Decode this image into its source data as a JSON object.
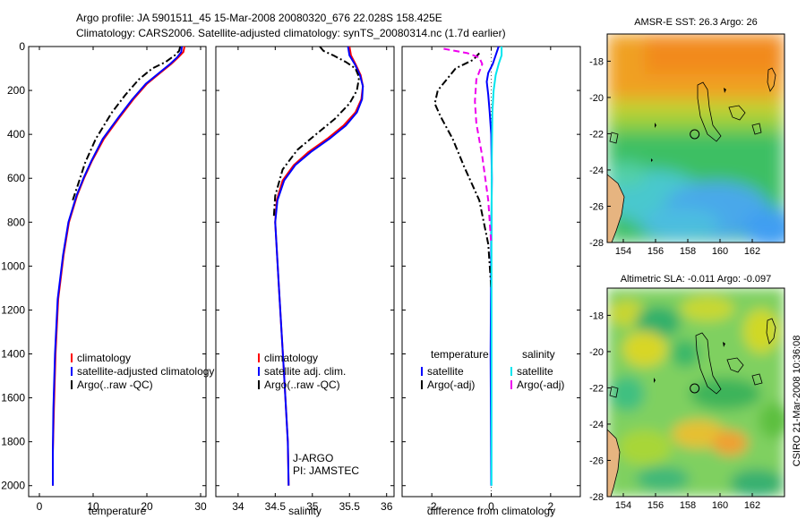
{
  "title": {
    "line1": "Argo profile: JA 5901511_45 15-Mar-2008 20080320_676 22.028S 158.425E",
    "line2": "Climatology: CARS2006. Satellite-adjusted climatology: synTS_20080314.nc (1.7d earlier)"
  },
  "side_label": "CSIRO 21-Mar-2008 10:36:08",
  "colors": {
    "climatology": "#ff0000",
    "satellite": "#0000ff",
    "argo": "#000000",
    "sat_salinity": "#00e5ee",
    "argo_salinity": "#ee00ee"
  },
  "chart_data": [
    {
      "type": "line",
      "name": "temperature",
      "xlabel": "temperature",
      "xlim": [
        -2,
        31
      ],
      "ylim": [
        2050,
        0
      ],
      "xticks": [
        0,
        10,
        20,
        30
      ],
      "xtick_labels": [
        "0",
        "10",
        "20",
        "30"
      ],
      "yticks": [
        0,
        200,
        400,
        600,
        800,
        1000,
        1200,
        1400,
        1600,
        1800,
        2000
      ],
      "ytick_labels": [
        "0",
        "200",
        "400",
        "600",
        "800",
        "1000",
        "1200",
        "1400",
        "1600",
        "1800",
        "2000"
      ],
      "legend": [
        "climatology",
        "satellite-adjusted climatology",
        "Argo(..raw -QC)"
      ],
      "series": [
        {
          "name": "climatology",
          "style": "solid",
          "x": [
            27.0,
            26.8,
            25.8,
            24.5,
            22.5,
            20.0,
            17.5,
            15.0,
            12.0,
            9.8,
            8.3,
            7.0,
            5.5,
            4.5,
            3.5,
            3.0,
            2.7,
            2.5,
            2.5
          ],
          "y": [
            0,
            25,
            50,
            80,
            120,
            170,
            240,
            320,
            420,
            520,
            600,
            680,
            800,
            950,
            1150,
            1400,
            1650,
            1850,
            2000
          ]
        },
        {
          "name": "satellite-adjusted climatology",
          "style": "solid",
          "x": [
            26.5,
            26.4,
            25.6,
            24.3,
            22.3,
            19.8,
            17.3,
            14.8,
            11.8,
            9.7,
            8.2,
            6.9,
            5.4,
            4.4,
            3.4,
            2.9,
            2.6,
            2.5,
            2.5
          ],
          "y": [
            0,
            25,
            50,
            80,
            120,
            170,
            240,
            320,
            420,
            520,
            600,
            680,
            800,
            950,
            1150,
            1400,
            1650,
            1850,
            2000
          ]
        },
        {
          "name": "Argo(..raw -QC)",
          "style": "dashdot",
          "x": [
            26.2,
            26.0,
            25.2,
            23.5,
            21.0,
            18.5,
            16.0,
            13.5,
            10.5,
            8.5,
            7.3,
            6.2
          ],
          "y": [
            0,
            20,
            40,
            70,
            100,
            150,
            220,
            300,
            420,
            530,
            620,
            700
          ]
        }
      ]
    },
    {
      "type": "line",
      "name": "salinity",
      "xlabel": "salinity",
      "xlim": [
        33.7,
        36.1
      ],
      "ylim": [
        2050,
        0
      ],
      "xticks": [
        34,
        34.5,
        35,
        35.5,
        36
      ],
      "xtick_labels": [
        "34",
        "34.5",
        "35",
        "35.5",
        "36"
      ],
      "legend": [
        "climatology",
        "satellite adj. clim.",
        "Argo(..raw -QC)"
      ],
      "annotation": [
        "J-ARGO",
        "PI: JAMSTEC"
      ],
      "series": [
        {
          "name": "climatology",
          "style": "solid",
          "x": [
            35.5,
            35.52,
            35.58,
            35.65,
            35.68,
            35.66,
            35.58,
            35.42,
            35.2,
            34.95,
            34.75,
            34.6,
            34.52,
            34.5,
            34.55,
            34.62,
            34.67,
            34.68
          ],
          "y": [
            0,
            40,
            80,
            130,
            180,
            240,
            300,
            360,
            420,
            480,
            540,
            610,
            700,
            800,
            1100,
            1500,
            1800,
            2000
          ]
        },
        {
          "name": "satellite adj. clim.",
          "style": "solid",
          "x": [
            35.48,
            35.5,
            35.57,
            35.64,
            35.68,
            35.67,
            35.6,
            35.45,
            35.23,
            34.98,
            34.77,
            34.62,
            34.53,
            34.5,
            34.55,
            34.62,
            34.67,
            34.68
          ],
          "y": [
            0,
            40,
            80,
            130,
            180,
            240,
            300,
            360,
            420,
            480,
            540,
            610,
            700,
            800,
            1100,
            1500,
            1800,
            2000
          ]
        },
        {
          "name": "Argo(..raw -QC)",
          "style": "dashdot",
          "x": [
            35.1,
            35.15,
            35.28,
            35.45,
            35.58,
            35.63,
            35.6,
            35.5,
            35.3,
            35.05,
            34.8,
            34.6,
            34.5,
            34.48
          ],
          "y": [
            0,
            20,
            40,
            70,
            100,
            140,
            200,
            260,
            330,
            400,
            470,
            560,
            680,
            780
          ]
        }
      ]
    },
    {
      "type": "line",
      "name": "difference",
      "xlabel": "difference from climatology",
      "xlim": [
        -3,
        3
      ],
      "ylim": [
        2050,
        0
      ],
      "xticks": [
        -2,
        0,
        2
      ],
      "xtick_labels": [
        "-2",
        "0",
        "2"
      ],
      "legend_left_title": "temperature",
      "legend_right_title": "salinity",
      "legend": [
        "satellite",
        "Argo(-adj)",
        "satellite",
        "Argo(-adj)"
      ],
      "series": [
        {
          "name": "temperature satellite",
          "style": "solid",
          "x": [
            0.25,
            0.15,
            0.05,
            -0.1,
            -0.15,
            -0.1,
            -0.05,
            0,
            0.02,
            0,
            -0.02,
            0
          ],
          "y": [
            0,
            40,
            80,
            120,
            160,
            220,
            300,
            400,
            600,
            900,
            1400,
            2000
          ]
        },
        {
          "name": "temperature Argo(-adj)",
          "style": "dashdot",
          "x": [
            -0.4,
            -0.6,
            -1.2,
            -1.5,
            -1.8,
            -1.9,
            -1.7,
            -1.3,
            -0.9,
            -0.4,
            -0.1,
            0
          ],
          "y": [
            30,
            60,
            100,
            150,
            200,
            260,
            320,
            420,
            550,
            700,
            900,
            1100
          ]
        },
        {
          "name": "salinity satellite",
          "style": "solid",
          "x": [
            0.35,
            0.35,
            0.25,
            0.15,
            0.08,
            0.04,
            0.02,
            0.01,
            0.01
          ],
          "y": [
            0,
            40,
            80,
            130,
            200,
            300,
            500,
            900,
            2000
          ]
        },
        {
          "name": "salinity Argo(-adj)",
          "style": "dashed",
          "x": [
            -1.6,
            -0.8,
            -0.4,
            -0.3,
            -0.5,
            -0.55,
            -0.5,
            -0.3,
            -0.1,
            0
          ],
          "y": [
            10,
            30,
            50,
            80,
            150,
            250,
            350,
            500,
            700,
            900
          ]
        }
      ]
    },
    {
      "type": "heatmap",
      "name": "sst_map",
      "title": "AMSR-E SST: 26.3 Argo: 26",
      "xlim": [
        153,
        164
      ],
      "ylim": [
        -28,
        -16.5
      ],
      "xticks": [
        154,
        156,
        158,
        160,
        162
      ],
      "yticks": [
        -18,
        -20,
        -22,
        -24,
        -26,
        -28
      ],
      "float_position": {
        "lon": 158.425,
        "lat": -22.028
      }
    },
    {
      "type": "heatmap",
      "name": "sla_map",
      "title": "Altimetric SLA: -0.011 Argo: -0.097",
      "xlim": [
        153,
        164
      ],
      "ylim": [
        -28,
        -16.5
      ],
      "xticks": [
        154,
        156,
        158,
        160,
        162
      ],
      "yticks": [
        -18,
        -20,
        -22,
        -24,
        -26,
        -28
      ],
      "float_position": {
        "lon": 158.425,
        "lat": -22.028
      }
    }
  ]
}
